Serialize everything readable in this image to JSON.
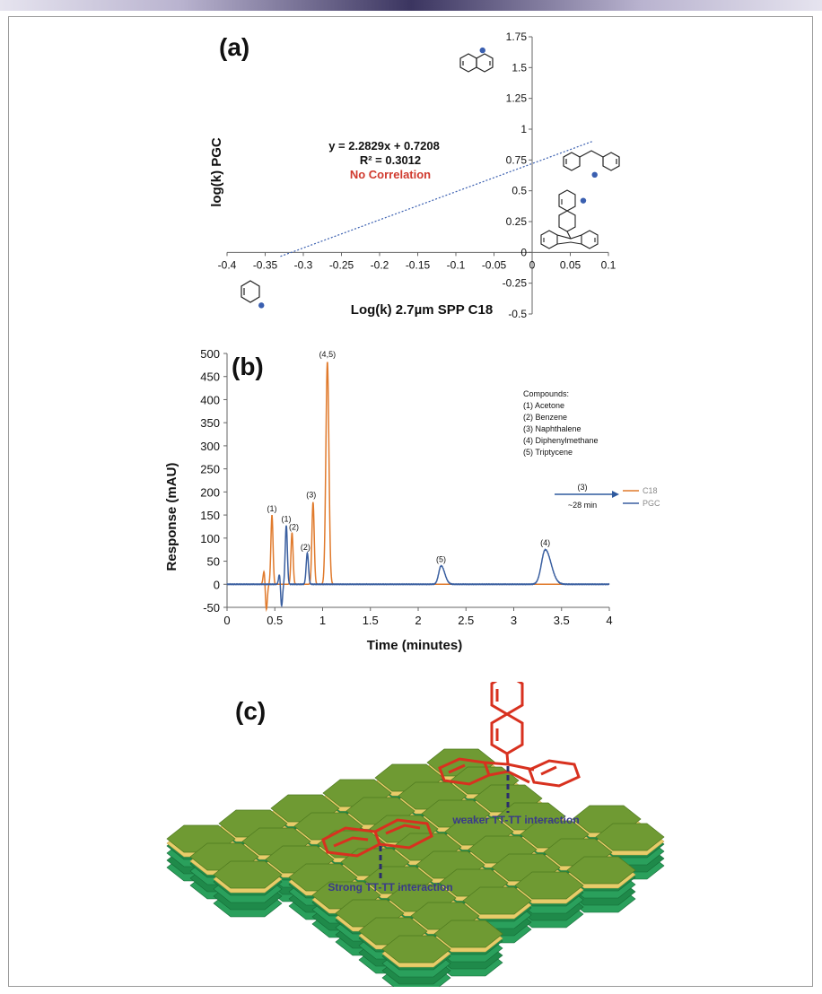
{
  "chart_data": [
    {
      "type": "scatter",
      "panel_label": "(a)",
      "xlabel": "Log(k) 2.7µm SPP C18",
      "ylabel": "log(k) PGC",
      "xlim": [
        -0.4,
        0.1
      ],
      "ylim": [
        -0.5,
        1.75
      ],
      "x_ticks": [
        "-0.4",
        "-0.35",
        "-0.3",
        "-0.25",
        "-0.2",
        "-0.15",
        "-0.1",
        "-0.05",
        "0",
        "0.05",
        "0.1"
      ],
      "y_ticks": [
        "1.75",
        "1.5",
        "1.25",
        "1",
        "0.75",
        "0.5",
        "0.25",
        "0",
        "-0.25",
        "-0.5"
      ],
      "points": [
        {
          "compound": "Benzene",
          "x": -0.355,
          "y": -0.43
        },
        {
          "compound": "Naphthalene",
          "x": -0.065,
          "y": 1.64
        },
        {
          "compound": "Triptycene",
          "x": 0.067,
          "y": 0.42
        },
        {
          "compound": "Diphenylmethane",
          "x": 0.082,
          "y": 0.63
        }
      ],
      "trendline": {
        "slope": 2.2829,
        "intercept": 0.7208,
        "x_range": [
          -0.33,
          0.08
        ]
      },
      "annotations": {
        "equation": "y = 2.2829x + 0.7208",
        "r_squared": "R² = 0.3012",
        "note": "No Correlation"
      },
      "colors": {
        "points": "#3a5fb0",
        "trendline": "#3a5fb0",
        "note": "#d03a2e"
      }
    },
    {
      "type": "line",
      "panel_label": "(b)",
      "xlabel": "Time (minutes)",
      "ylabel": "Response (mAU)",
      "xlim": [
        0,
        4
      ],
      "ylim": [
        -50,
        500
      ],
      "x_ticks": [
        "0",
        "0.5",
        "1",
        "1.5",
        "2",
        "2.5",
        "3",
        "3.5",
        "4"
      ],
      "y_ticks": [
        "500",
        "450",
        "400",
        "350",
        "300",
        "250",
        "200",
        "150",
        "100",
        "50",
        "0",
        "-50"
      ],
      "series": [
        {
          "name": "C18",
          "color": "#e07a2c",
          "peaks": [
            {
              "t": 0.39,
              "h": 35,
              "w": 0.011
            },
            {
              "t": 0.41,
              "h": -60,
              "w": 0.011
            },
            {
              "t": 0.47,
              "h": 150,
              "w": 0.011
            },
            {
              "t": 0.68,
              "h": 112,
              "w": 0.011
            },
            {
              "t": 0.9,
              "h": 178,
              "w": 0.012
            },
            {
              "t": 1.05,
              "h": 482,
              "w": 0.016
            }
          ]
        },
        {
          "name": "PGC",
          "color": "#3a5fa0",
          "peaks": [
            {
              "t": 0.55,
              "h": 25,
              "w": 0.01
            },
            {
              "t": 0.57,
              "h": -50,
              "w": 0.01
            },
            {
              "t": 0.62,
              "h": 128,
              "w": 0.011
            },
            {
              "t": 0.84,
              "h": 68,
              "w": 0.012
            },
            {
              "t": 2.24,
              "h": 40,
              "w": 0.025
            },
            {
              "t": 3.33,
              "h": 75,
              "w": 0.04
            }
          ]
        }
      ],
      "peak_labels": [
        {
          "text": "(1)",
          "x": 0.47,
          "y": 158
        },
        {
          "text": "(1)",
          "x": 0.62,
          "y": 136
        },
        {
          "text": "(2)",
          "x": 0.7,
          "y": 118
        },
        {
          "text": "(2)",
          "x": 0.82,
          "y": 74
        },
        {
          "text": "(3)",
          "x": 0.88,
          "y": 188
        },
        {
          "text": "(4,5)",
          "x": 1.05,
          "y": 492
        },
        {
          "text": "(5)",
          "x": 2.24,
          "y": 48
        },
        {
          "text": "(4)",
          "x": 3.33,
          "y": 84
        }
      ],
      "compounds_title": "Compounds:",
      "compounds": [
        "(1) Acetone",
        "(2) Benzene",
        "(3) Naphthalene",
        "(4) Diphenylmethane",
        "(5) Triptycene"
      ],
      "arrow_note": {
        "label": "(3)",
        "sublabel": "~28 min"
      },
      "legend": [
        "C18",
        "PGC"
      ]
    }
  ],
  "panel_c": {
    "label": "(c)",
    "strong_label": "Strong TT-TT interaction",
    "weak_label": "weaker TT-TT interaction",
    "colors": {
      "hex_top": "#6f9a33",
      "hex_edge": "#e8cc6a",
      "layer": "#1f8a4a",
      "molecule": "#d8311f",
      "dashed": "#2b2d6b",
      "label_text": "#3a3a8a"
    }
  }
}
